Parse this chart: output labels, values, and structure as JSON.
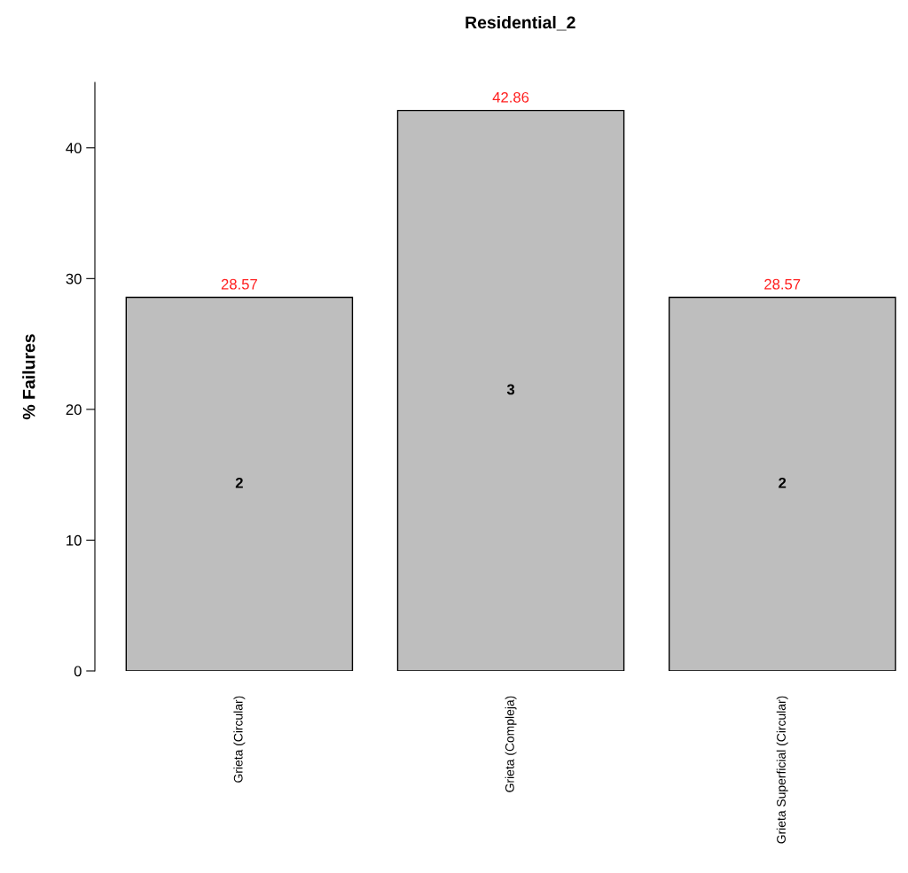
{
  "chart_data": {
    "type": "bar",
    "title": "Residential_2",
    "ylabel": "% Failures",
    "categories": [
      "Grieta (Circular)",
      "Grieta (Compleja)",
      "Grieta Superficial (Circular)"
    ],
    "values": [
      28.57,
      42.86,
      28.57
    ],
    "color": "#bebebe",
    "ylim": [
      0,
      45
    ],
    "yticks": [
      0,
      10,
      20,
      30,
      40
    ],
    "grid": false,
    "data_labels": true,
    "annotations": [
      "2",
      "3",
      "2"
    ]
  }
}
